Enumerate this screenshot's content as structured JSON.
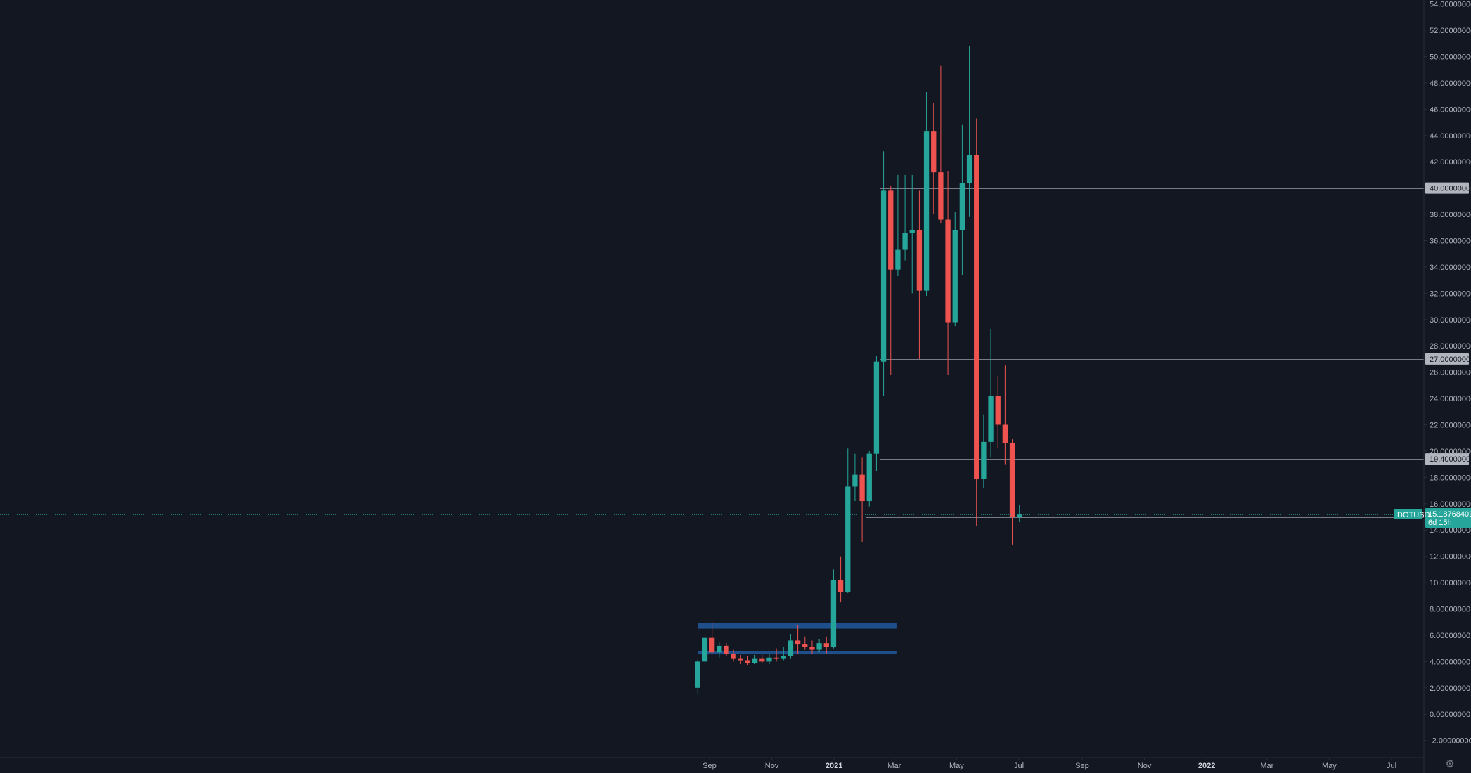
{
  "chart_data": {
    "type": "candlestick",
    "symbol": "DOTUSD",
    "interval": "weekly",
    "y_ticks": [
      -2,
      0,
      2,
      4,
      6,
      8,
      10,
      12,
      14,
      16,
      18,
      20,
      22,
      24,
      26,
      28,
      30,
      32,
      34,
      36,
      38,
      40,
      42,
      44,
      46,
      48,
      50,
      52,
      54
    ],
    "y_tick_labels": [
      "-2.00000000",
      "0.00000000",
      "2.00000000",
      "4.00000000",
      "6.00000000",
      "8.00000000",
      "10.00000000",
      "12.00000000",
      "14.00000000",
      "16.00000000",
      "18.00000000",
      "20.00000000",
      "22.00000000",
      "24.00000000",
      "26.00000000",
      "28.00000000",
      "30.00000000",
      "32.00000000",
      "34.00000000",
      "36.00000000",
      "38.00000000",
      "40.00000000",
      "42.00000000",
      "44.00000000",
      "46.00000000",
      "48.00000000",
      "50.00000000",
      "52.00000000",
      "54.00000000"
    ],
    "ylim": [
      -3.3,
      54.3
    ],
    "x_ticks": [
      {
        "label": "Sep",
        "date": "2020-09-01",
        "bold": false
      },
      {
        "label": "Nov",
        "date": "2020-11-01",
        "bold": false
      },
      {
        "label": "2021",
        "date": "2021-01-01",
        "bold": true
      },
      {
        "label": "Mar",
        "date": "2021-03-01",
        "bold": false
      },
      {
        "label": "May",
        "date": "2021-05-01",
        "bold": false
      },
      {
        "label": "Jul",
        "date": "2021-07-01",
        "bold": false
      },
      {
        "label": "Sep",
        "date": "2021-09-01",
        "bold": false
      },
      {
        "label": "Nov",
        "date": "2021-11-01",
        "bold": false
      },
      {
        "label": "2022",
        "date": "2022-01-01",
        "bold": true
      },
      {
        "label": "Mar",
        "date": "2022-03-01",
        "bold": false
      },
      {
        "label": "May",
        "date": "2022-05-01",
        "bold": false
      },
      {
        "label": "Jul",
        "date": "2022-07-01",
        "bold": false
      }
    ],
    "candles": [
      {
        "date": "2020-08-17",
        "open": 2.0,
        "high": 4.2,
        "low": 1.5,
        "close": 4.0
      },
      {
        "date": "2020-08-24",
        "open": 4.0,
        "high": 6.1,
        "low": 3.9,
        "close": 5.8
      },
      {
        "date": "2020-08-31",
        "open": 5.8,
        "high": 7.0,
        "low": 4.5,
        "close": 4.7
      },
      {
        "date": "2020-09-07",
        "open": 4.7,
        "high": 5.5,
        "low": 4.3,
        "close": 5.2
      },
      {
        "date": "2020-09-14",
        "open": 5.2,
        "high": 5.4,
        "low": 4.4,
        "close": 4.6
      },
      {
        "date": "2020-09-21",
        "open": 4.6,
        "high": 4.9,
        "low": 4.0,
        "close": 4.2
      },
      {
        "date": "2020-09-28",
        "open": 4.2,
        "high": 4.5,
        "low": 3.8,
        "close": 4.1
      },
      {
        "date": "2020-10-05",
        "open": 4.1,
        "high": 4.4,
        "low": 3.7,
        "close": 3.9
      },
      {
        "date": "2020-10-12",
        "open": 3.9,
        "high": 4.5,
        "low": 3.8,
        "close": 4.2
      },
      {
        "date": "2020-10-19",
        "open": 4.2,
        "high": 4.5,
        "low": 3.9,
        "close": 4.0
      },
      {
        "date": "2020-10-26",
        "open": 4.0,
        "high": 4.6,
        "low": 3.8,
        "close": 4.3
      },
      {
        "date": "2020-11-02",
        "open": 4.3,
        "high": 5.0,
        "low": 4.0,
        "close": 4.2
      },
      {
        "date": "2020-11-09",
        "open": 4.2,
        "high": 5.1,
        "low": 4.1,
        "close": 4.4
      },
      {
        "date": "2020-11-16",
        "open": 4.4,
        "high": 6.1,
        "low": 4.2,
        "close": 5.6
      },
      {
        "date": "2020-11-23",
        "open": 5.6,
        "high": 6.8,
        "low": 4.6,
        "close": 5.3
      },
      {
        "date": "2020-11-30",
        "open": 5.3,
        "high": 5.9,
        "low": 4.9,
        "close": 5.1
      },
      {
        "date": "2020-12-07",
        "open": 5.1,
        "high": 5.6,
        "low": 4.6,
        "close": 4.9
      },
      {
        "date": "2020-12-14",
        "open": 4.9,
        "high": 5.7,
        "low": 4.7,
        "close": 5.4
      },
      {
        "date": "2020-12-21",
        "open": 5.4,
        "high": 5.9,
        "low": 4.6,
        "close": 5.1
      },
      {
        "date": "2020-12-28",
        "open": 5.1,
        "high": 11.0,
        "low": 5.0,
        "close": 10.2
      },
      {
        "date": "2021-01-04",
        "open": 10.2,
        "high": 12.0,
        "low": 8.5,
        "close": 9.3
      },
      {
        "date": "2021-01-11",
        "open": 9.3,
        "high": 20.2,
        "low": 9.2,
        "close": 17.3
      },
      {
        "date": "2021-01-18",
        "open": 17.3,
        "high": 19.8,
        "low": 16.2,
        "close": 18.2
      },
      {
        "date": "2021-01-25",
        "open": 18.2,
        "high": 19.5,
        "low": 13.1,
        "close": 16.2
      },
      {
        "date": "2021-02-01",
        "open": 16.2,
        "high": 20.0,
        "low": 15.8,
        "close": 19.8
      },
      {
        "date": "2021-02-08",
        "open": 19.8,
        "high": 27.2,
        "low": 18.5,
        "close": 26.8
      },
      {
        "date": "2021-02-15",
        "open": 26.8,
        "high": 42.8,
        "low": 24.2,
        "close": 39.8
      },
      {
        "date": "2021-02-22",
        "open": 39.8,
        "high": 40.2,
        "low": 25.8,
        "close": 33.8
      },
      {
        "date": "2021-03-01",
        "open": 33.8,
        "high": 41.0,
        "low": 33.3,
        "close": 35.3
      },
      {
        "date": "2021-03-08",
        "open": 35.3,
        "high": 41.0,
        "low": 34.5,
        "close": 36.6
      },
      {
        "date": "2021-03-15",
        "open": 36.6,
        "high": 41.0,
        "low": 32.0,
        "close": 36.8
      },
      {
        "date": "2021-03-22",
        "open": 36.8,
        "high": 39.8,
        "low": 27.0,
        "close": 32.2
      },
      {
        "date": "2021-03-29",
        "open": 32.2,
        "high": 47.3,
        "low": 31.8,
        "close": 44.3
      },
      {
        "date": "2021-04-05",
        "open": 44.3,
        "high": 46.5,
        "low": 38.0,
        "close": 41.2
      },
      {
        "date": "2021-04-12",
        "open": 41.2,
        "high": 49.3,
        "low": 37.3,
        "close": 37.6
      },
      {
        "date": "2021-04-19",
        "open": 37.6,
        "high": 41.3,
        "low": 25.8,
        "close": 29.8
      },
      {
        "date": "2021-04-26",
        "open": 29.8,
        "high": 38.2,
        "low": 29.5,
        "close": 36.8
      },
      {
        "date": "2021-05-03",
        "open": 36.8,
        "high": 44.8,
        "low": 33.4,
        "close": 40.4
      },
      {
        "date": "2021-05-10",
        "open": 40.4,
        "high": 50.8,
        "low": 37.8,
        "close": 42.5
      },
      {
        "date": "2021-05-17",
        "open": 42.5,
        "high": 45.3,
        "low": 14.3,
        "close": 17.9
      },
      {
        "date": "2021-05-24",
        "open": 17.9,
        "high": 22.8,
        "low": 17.2,
        "close": 20.7
      },
      {
        "date": "2021-05-31",
        "open": 20.7,
        "high": 29.3,
        "low": 19.5,
        "close": 24.2
      },
      {
        "date": "2021-06-07",
        "open": 24.2,
        "high": 25.7,
        "low": 20.2,
        "close": 22.0
      },
      {
        "date": "2021-06-14",
        "open": 22.0,
        "high": 26.5,
        "low": 19.0,
        "close": 20.6
      },
      {
        "date": "2021-06-21",
        "open": 20.6,
        "high": 20.9,
        "low": 12.9,
        "close": 15.0
      },
      {
        "date": "2021-06-28",
        "open": 15.0,
        "high": 15.9,
        "low": 14.6,
        "close": 15.18
      }
    ],
    "horizontal_levels": [
      {
        "value": 40,
        "label": "40.00000000"
      },
      {
        "value": 27,
        "label": "27.00000000"
      },
      {
        "value": 19.4,
        "label": "19.40000000"
      },
      {
        "value": 15,
        "label": "15.00000000"
      }
    ],
    "zones": [
      {
        "from_date": "2020-08-24",
        "to_date": "2021-02-22",
        "low": 6.5,
        "high": 6.95
      },
      {
        "from_date": "2020-08-24",
        "to_date": "2021-02-22",
        "low": 4.55,
        "high": 4.8
      }
    ],
    "last_price": {
      "symbol": "DOTUSD",
      "value": 15.18768401,
      "label": "15.18768401",
      "countdown": "6d 15h"
    },
    "colors": {
      "up": "#26a69a",
      "down": "#ef5350",
      "background": "#131722",
      "level_line": "#787b86",
      "zone": "#1e4f8a",
      "price_line": "#26a69a"
    }
  },
  "ui": {
    "settings_icon": "gear-icon"
  }
}
